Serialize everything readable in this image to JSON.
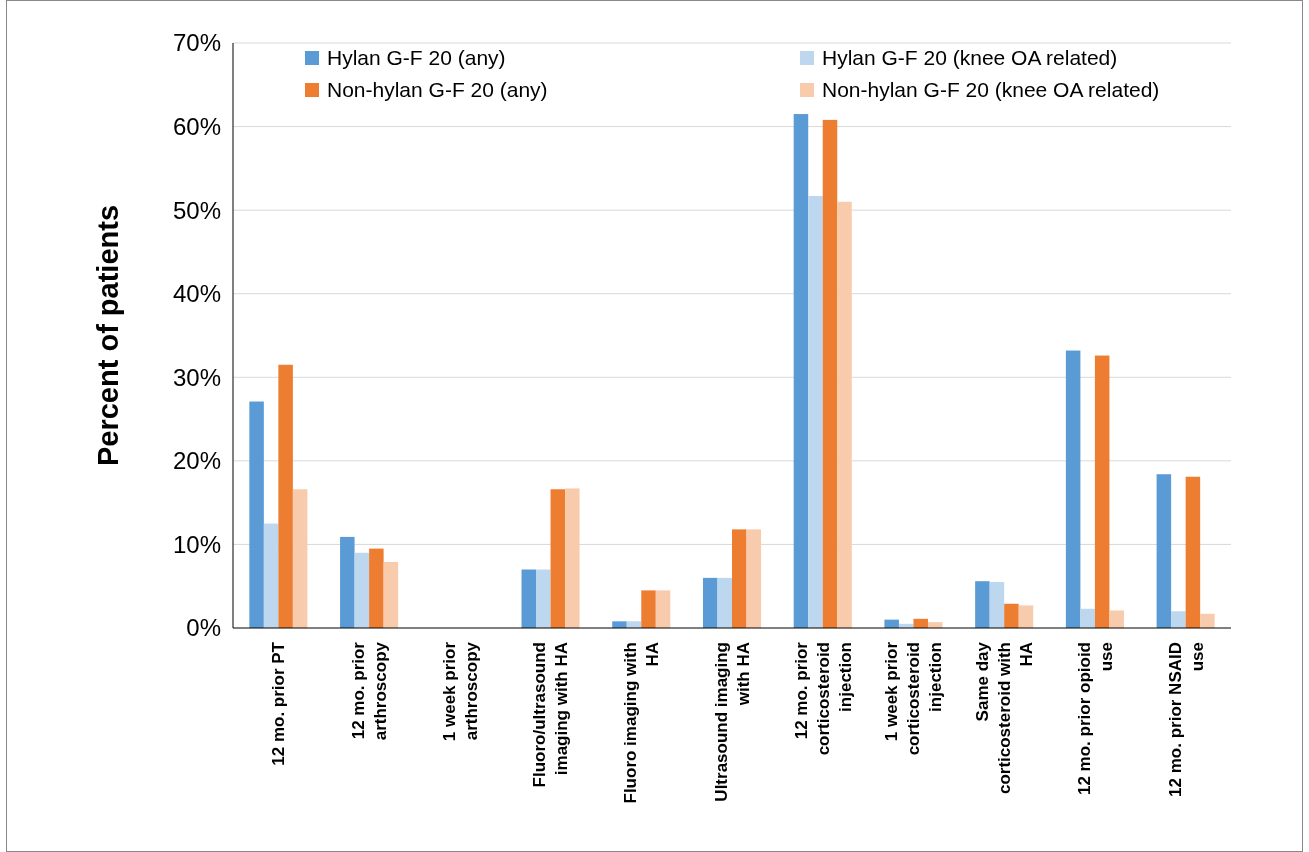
{
  "chart_data": {
    "type": "bar",
    "ylabel": "Percent of patients",
    "categories": [
      "12 mo. prior PT",
      "12 mo. prior arthroscopy",
      "1 week prior arthroscopy",
      "Fluoro/ultrasound imaging with HA",
      "Fluoro imaging with HA",
      "Ultrasound imaging with HA",
      "12 mo. prior corticosteroid injection",
      "1 week prior corticosteroid injection",
      "Same day corticosteroid with HA",
      "12 mo. prior opioid use",
      "12 mo. prior NSAID use"
    ],
    "series": [
      {
        "name": "Hylan G-F 20 (any)",
        "color": "#5b9bd5",
        "values": [
          27.1,
          10.9,
          0,
          7.0,
          0.8,
          6.0,
          61.5,
          1.0,
          5.6,
          33.2,
          18.4
        ]
      },
      {
        "name": "Hylan G-F 20 (knee OA related)",
        "color": "#bdd7ee",
        "values": [
          12.5,
          9.0,
          0,
          7.0,
          0.8,
          6.0,
          51.7,
          0.5,
          5.5,
          2.3,
          2.0
        ]
      },
      {
        "name": "Non-hylan G-F 20 (any)",
        "color": "#ed7d31",
        "values": [
          31.5,
          9.5,
          0,
          16.6,
          4.5,
          11.8,
          60.8,
          1.1,
          2.9,
          32.6,
          18.1
        ]
      },
      {
        "name": "Non-hylan G-F 20 (knee OA related)",
        "color": "#f8cbad",
        "values": [
          16.6,
          7.9,
          0,
          16.7,
          4.5,
          11.8,
          51.0,
          0.7,
          2.7,
          2.1,
          1.7
        ]
      }
    ],
    "ylim": [
      0,
      70
    ],
    "yticks": [
      {
        "value": 0,
        "label": "0%"
      },
      {
        "value": 10,
        "label": "10%"
      },
      {
        "value": 20,
        "label": "20%"
      },
      {
        "value": 30,
        "label": "30%"
      },
      {
        "value": 40,
        "label": "40%"
      },
      {
        "value": 50,
        "label": "50%"
      },
      {
        "value": 60,
        "label": "60%"
      },
      {
        "value": 70,
        "label": "70%"
      }
    ],
    "grid": "y",
    "legend": "top"
  }
}
